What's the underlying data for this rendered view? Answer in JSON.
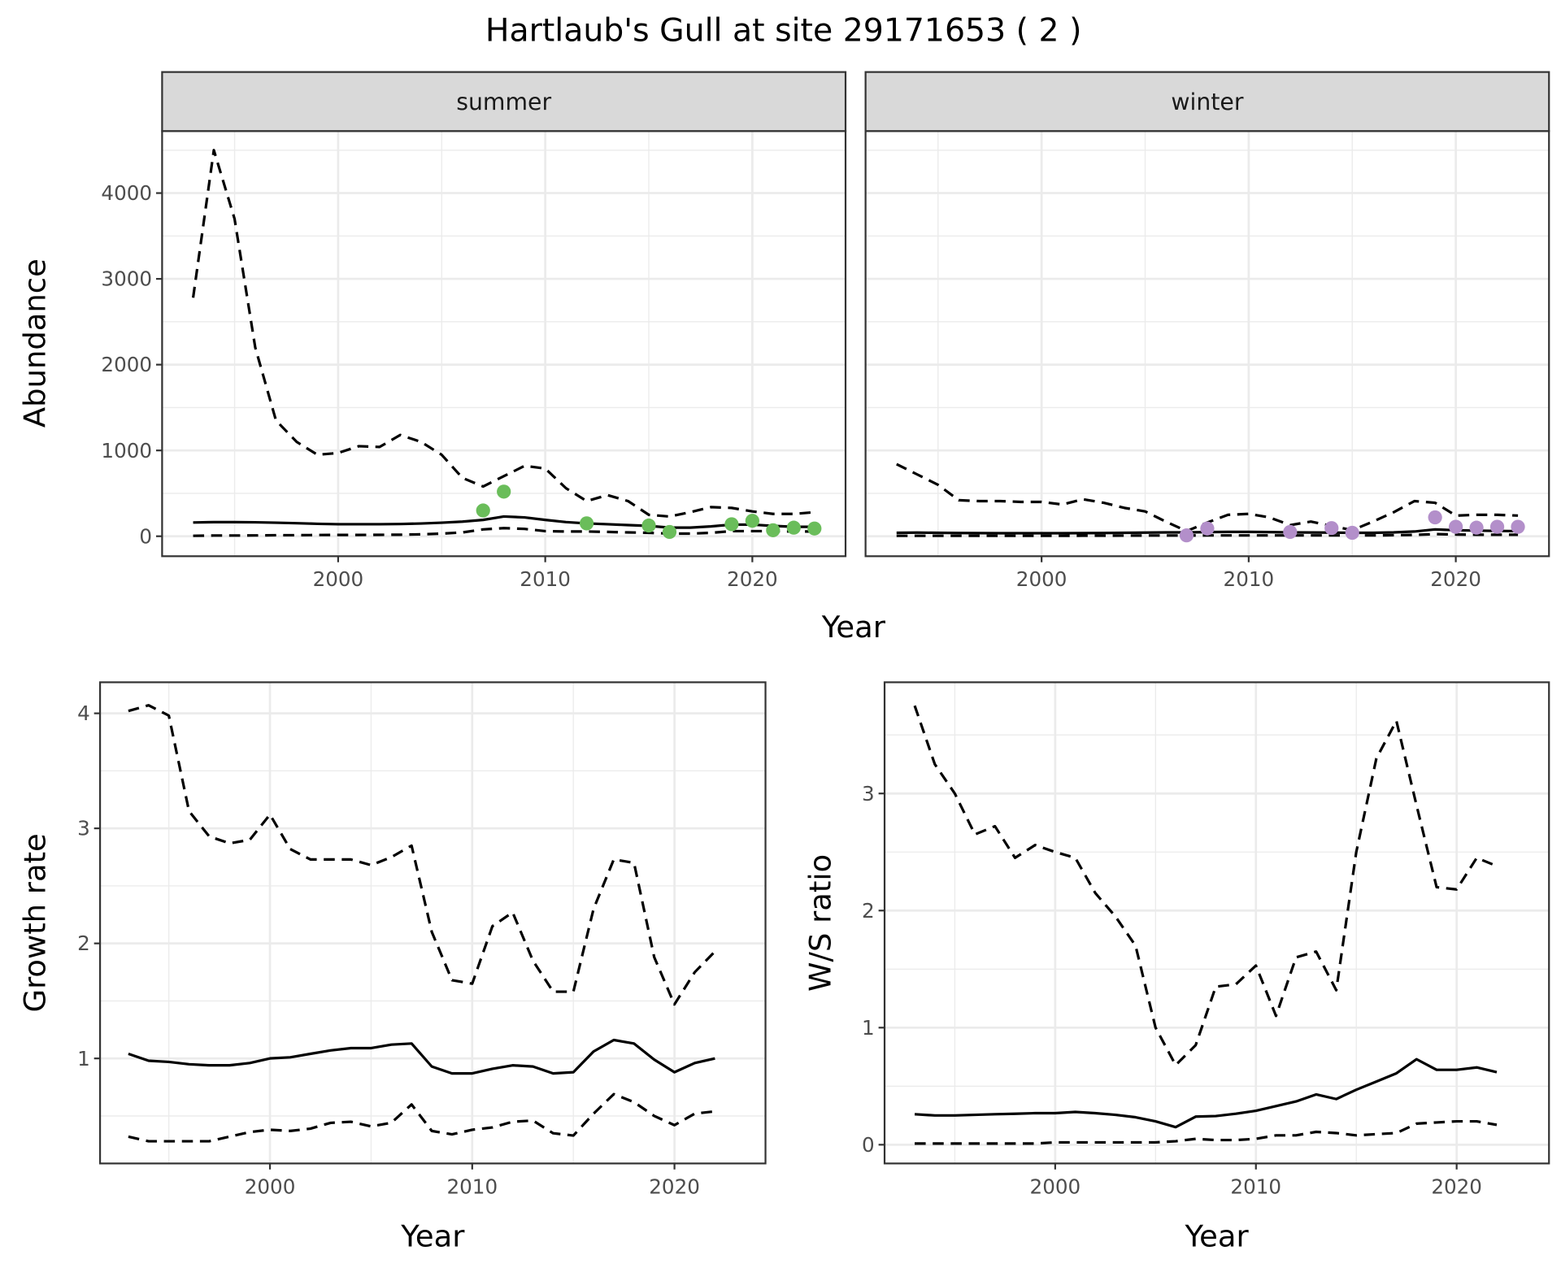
{
  "title": "Hartlaub's Gull at site 29171653 ( 2 )",
  "colors": {
    "summer_points": "#6ABD5A",
    "winter_points": "#B38FCA",
    "line": "#000000",
    "grid": "#EBEBEB",
    "strip_bg": "#D9D9D9"
  },
  "chart_data": [
    {
      "type": "line",
      "panel": "summer",
      "strip_label": "summer",
      "xlabel": "Year",
      "ylabel": "Abundance",
      "xlim": [
        1991.5,
        2024.5
      ],
      "ylim": [
        -233,
        4723
      ],
      "xticks": [
        2000,
        2010,
        2020
      ],
      "yticks": [
        0,
        1000,
        2000,
        3000,
        4000
      ],
      "x": [
        1993,
        1994,
        1995,
        1996,
        1997,
        1998,
        1999,
        2000,
        2001,
        2002,
        2003,
        2004,
        2005,
        2006,
        2007,
        2008,
        2009,
        2010,
        2011,
        2012,
        2013,
        2014,
        2015,
        2016,
        2017,
        2018,
        2019,
        2020,
        2021,
        2022,
        2023
      ],
      "series": [
        {
          "name": "upper",
          "style": "dashed",
          "values": [
            2780,
            4500,
            3700,
            2200,
            1350,
            1100,
            950,
            970,
            1050,
            1040,
            1180,
            1100,
            950,
            680,
            580,
            700,
            820,
            790,
            560,
            410,
            480,
            410,
            250,
            230,
            280,
            340,
            330,
            290,
            260,
            260,
            280
          ]
        },
        {
          "name": "mean",
          "style": "solid",
          "values": [
            160,
            165,
            165,
            162,
            158,
            152,
            145,
            140,
            140,
            140,
            142,
            148,
            158,
            170,
            190,
            230,
            220,
            190,
            165,
            150,
            140,
            130,
            120,
            100,
            100,
            115,
            135,
            135,
            120,
            110,
            110
          ]
        },
        {
          "name": "lower",
          "style": "dashed",
          "values": [
            5,
            8,
            8,
            10,
            12,
            12,
            14,
            15,
            15,
            16,
            18,
            22,
            30,
            45,
            80,
            95,
            85,
            60,
            55,
            55,
            50,
            45,
            40,
            30,
            30,
            40,
            60,
            60,
            60,
            55,
            55
          ]
        }
      ],
      "points": {
        "x": [
          2007,
          2008,
          2012,
          2015,
          2016,
          2019,
          2020,
          2021,
          2022,
          2023
        ],
        "y": [
          300,
          520,
          150,
          125,
          50,
          140,
          180,
          70,
          100,
          90
        ]
      }
    },
    {
      "type": "line",
      "panel": "winter",
      "strip_label": "winter",
      "xlabel": "Year",
      "ylabel": "Abundance",
      "xlim": [
        1991.5,
        2024.5
      ],
      "ylim": [
        -233,
        4723
      ],
      "xticks": [
        2000,
        2010,
        2020
      ],
      "yticks": [
        0,
        1000,
        2000,
        3000,
        4000
      ],
      "x": [
        1993,
        1994,
        1995,
        1996,
        1997,
        1998,
        1999,
        2000,
        2001,
        2002,
        2003,
        2004,
        2005,
        2006,
        2007,
        2008,
        2009,
        2010,
        2011,
        2012,
        2013,
        2014,
        2015,
        2016,
        2017,
        2018,
        2019,
        2020,
        2021,
        2022,
        2023
      ],
      "series": [
        {
          "name": "upper",
          "style": "dashed",
          "values": [
            840,
            720,
            600,
            420,
            410,
            410,
            400,
            400,
            370,
            430,
            390,
            330,
            290,
            170,
            60,
            160,
            250,
            260,
            220,
            130,
            170,
            120,
            70,
            170,
            280,
            410,
            390,
            240,
            250,
            250,
            240
          ]
        },
        {
          "name": "mean",
          "style": "solid",
          "values": [
            40,
            42,
            40,
            38,
            36,
            35,
            35,
            35,
            35,
            36,
            38,
            40,
            42,
            44,
            45,
            48,
            50,
            50,
            48,
            45,
            43,
            42,
            40,
            40,
            45,
            55,
            80,
            70,
            65,
            62,
            60
          ]
        },
        {
          "name": "lower",
          "style": "dashed",
          "values": [
            5,
            5,
            5,
            5,
            5,
            5,
            5,
            5,
            5,
            6,
            6,
            7,
            8,
            8,
            8,
            10,
            10,
            10,
            10,
            10,
            10,
            10,
            10,
            10,
            12,
            15,
            25,
            20,
            18,
            18,
            18
          ]
        }
      ],
      "points": {
        "x": [
          2007,
          2008,
          2012,
          2014,
          2015,
          2019,
          2020,
          2021,
          2022,
          2023
        ],
        "y": [
          10,
          90,
          50,
          95,
          40,
          220,
          110,
          100,
          110,
          110
        ]
      }
    },
    {
      "type": "line",
      "panel": "growth",
      "xlabel": "Year",
      "ylabel": "Growth rate",
      "xlim": [
        1991.6,
        2024.5
      ],
      "ylim": [
        0.087,
        4.27
      ],
      "xticks": [
        2000,
        2010,
        2020
      ],
      "yticks": [
        1,
        2,
        3,
        4
      ],
      "x": [
        1993,
        1994,
        1995,
        1996,
        1997,
        1998,
        1999,
        2000,
        2001,
        2002,
        2003,
        2004,
        2005,
        2006,
        2007,
        2008,
        2009,
        2010,
        2011,
        2012,
        2013,
        2014,
        2015,
        2016,
        2017,
        2018,
        2019,
        2020,
        2021,
        2022
      ],
      "series": [
        {
          "name": "upper",
          "style": "dashed",
          "values": [
            4.02,
            4.07,
            3.98,
            3.15,
            2.93,
            2.87,
            2.9,
            3.12,
            2.82,
            2.73,
            2.73,
            2.73,
            2.68,
            2.75,
            2.85,
            2.1,
            1.68,
            1.65,
            2.15,
            2.27,
            1.85,
            1.58,
            1.58,
            2.3,
            2.73,
            2.7,
            1.88,
            1.47,
            1.75,
            1.93
          ]
        },
        {
          "name": "mean",
          "style": "solid",
          "values": [
            1.04,
            0.98,
            0.97,
            0.95,
            0.94,
            0.94,
            0.96,
            1.0,
            1.01,
            1.04,
            1.07,
            1.09,
            1.09,
            1.12,
            1.13,
            0.93,
            0.87,
            0.87,
            0.91,
            0.94,
            0.93,
            0.87,
            0.88,
            1.06,
            1.16,
            1.13,
            0.99,
            0.88,
            0.96,
            1.0
          ]
        },
        {
          "name": "lower",
          "style": "dashed",
          "values": [
            0.32,
            0.28,
            0.28,
            0.28,
            0.28,
            0.32,
            0.36,
            0.38,
            0.37,
            0.39,
            0.44,
            0.45,
            0.41,
            0.44,
            0.6,
            0.37,
            0.34,
            0.38,
            0.4,
            0.45,
            0.46,
            0.35,
            0.33,
            0.52,
            0.69,
            0.62,
            0.5,
            0.42,
            0.52,
            0.54
          ]
        }
      ]
    },
    {
      "type": "line",
      "panel": "ws_ratio",
      "xlabel": "Year",
      "ylabel": "W/S ratio",
      "xlim": [
        1991.5,
        2024.6
      ],
      "ylim": [
        -0.16,
        3.95
      ],
      "xticks": [
        2000,
        2010,
        2020
      ],
      "yticks": [
        0,
        1,
        2,
        3
      ],
      "x": [
        1993,
        1994,
        1995,
        1996,
        1997,
        1998,
        1999,
        2000,
        2001,
        2002,
        2003,
        2004,
        2005,
        2006,
        2007,
        2008,
        2009,
        2010,
        2011,
        2012,
        2013,
        2014,
        2015,
        2016,
        2017,
        2018,
        2019,
        2020,
        2021,
        2022
      ],
      "series": [
        {
          "name": "upper",
          "style": "dashed",
          "values": [
            3.75,
            3.25,
            3.0,
            2.65,
            2.72,
            2.45,
            2.56,
            2.5,
            2.45,
            2.15,
            1.95,
            1.7,
            1.0,
            0.68,
            0.85,
            1.35,
            1.37,
            1.53,
            1.1,
            1.6,
            1.65,
            1.32,
            2.5,
            3.3,
            3.62,
            2.9,
            2.2,
            2.18,
            2.45,
            2.38
          ]
        },
        {
          "name": "mean",
          "style": "solid",
          "values": [
            0.26,
            0.25,
            0.25,
            0.255,
            0.26,
            0.265,
            0.27,
            0.27,
            0.28,
            0.27,
            0.255,
            0.235,
            0.2,
            0.15,
            0.24,
            0.245,
            0.265,
            0.29,
            0.33,
            0.37,
            0.43,
            0.39,
            0.47,
            0.54,
            0.61,
            0.73,
            0.64,
            0.64,
            0.66,
            0.62
          ]
        },
        {
          "name": "lower",
          "style": "dashed",
          "values": [
            0.01,
            0.01,
            0.01,
            0.01,
            0.01,
            0.01,
            0.01,
            0.02,
            0.02,
            0.02,
            0.02,
            0.02,
            0.02,
            0.03,
            0.05,
            0.04,
            0.04,
            0.05,
            0.08,
            0.08,
            0.11,
            0.1,
            0.08,
            0.09,
            0.1,
            0.18,
            0.19,
            0.2,
            0.2,
            0.17
          ]
        }
      ]
    }
  ]
}
